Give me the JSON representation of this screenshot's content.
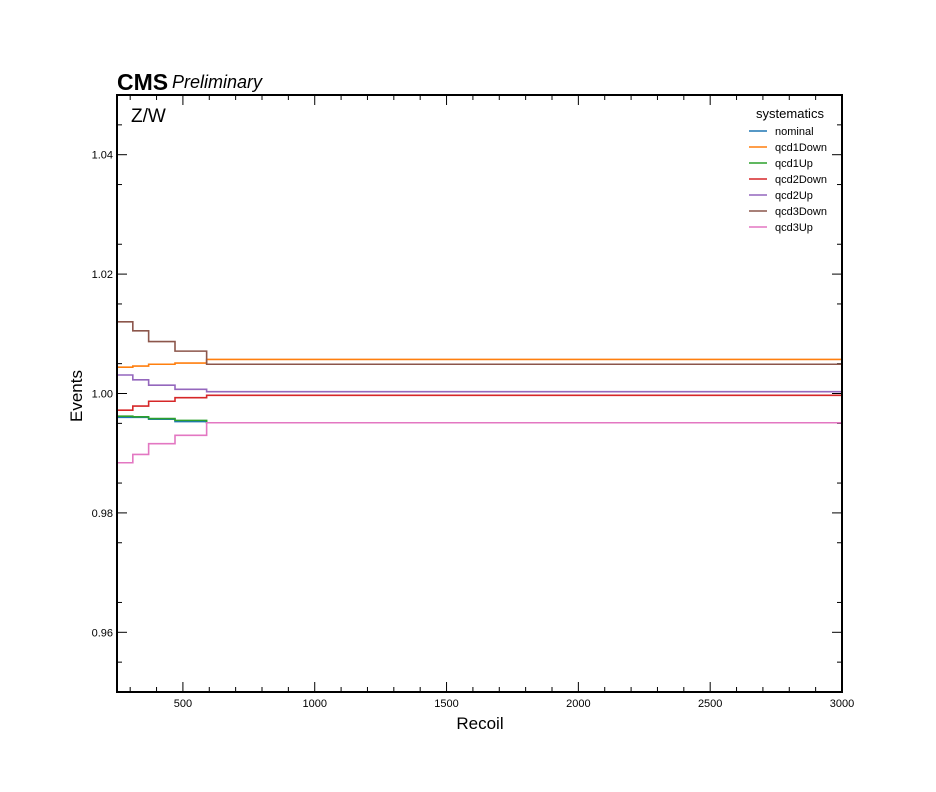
{
  "header": {
    "cms": "CMS",
    "preliminary": "Preliminary"
  },
  "chart_data": {
    "type": "line",
    "step": true,
    "title": "",
    "xlabel": "Recoil",
    "ylabel": "Events",
    "annotation": "Z/W",
    "xlim": [
      250,
      3000
    ],
    "ylim": [
      0.95,
      1.05
    ],
    "xticks": [
      500,
      1000,
      1500,
      2000,
      2500,
      3000
    ],
    "xtick_labels": [
      "500",
      "1000",
      "1500",
      "2000",
      "2500",
      "3000"
    ],
    "yticks": [
      0.96,
      0.98,
      1.0,
      1.02,
      1.04
    ],
    "ytick_labels": [
      "0.96",
      "0.98",
      "1.00",
      "1.02",
      "1.04"
    ],
    "grid": false,
    "legend": {
      "title": "systematics",
      "position": "top-right"
    },
    "bin_edges": [
      250,
      310,
      370,
      470,
      590,
      3000
    ],
    "series": [
      {
        "name": "nominal",
        "color": "#1f77b4",
        "values": [
          0.996,
          0.996,
          0.9957,
          0.9953,
          0.9951
        ]
      },
      {
        "name": "qcd1Down",
        "color": "#ff7f0e",
        "values": [
          1.0044,
          1.0046,
          1.0049,
          1.0051,
          1.0057
        ]
      },
      {
        "name": "qcd1Up",
        "color": "#2ca02c",
        "values": [
          0.9962,
          0.9961,
          0.9958,
          0.9955,
          0.9951
        ]
      },
      {
        "name": "qcd2Down",
        "color": "#d62728",
        "values": [
          0.9972,
          0.9979,
          0.9987,
          0.9993,
          0.9997
        ]
      },
      {
        "name": "qcd2Up",
        "color": "#9467bd",
        "values": [
          1.0031,
          1.0023,
          1.0014,
          1.0007,
          1.0003
        ]
      },
      {
        "name": "qcd3Down",
        "color": "#8c564b",
        "values": [
          1.012,
          1.0105,
          1.0087,
          1.0071,
          1.0049
        ]
      },
      {
        "name": "qcd3Up",
        "color": "#e377c2",
        "values": [
          0.9884,
          0.9898,
          0.9916,
          0.993,
          0.9951
        ]
      }
    ]
  }
}
